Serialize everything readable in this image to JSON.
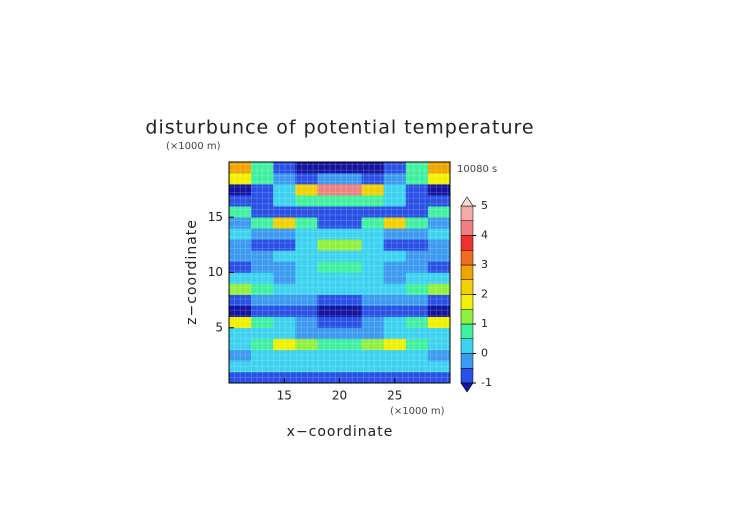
{
  "chart_data": {
    "type": "heatmap",
    "title": "disturbunce of potential temperature",
    "x_label": "x−coordinate",
    "y_label": "z−coordinate",
    "x_unit": "(×1000 m)",
    "y_unit": "(×1000 m)",
    "annotation": "10080 s",
    "xlim": [
      10,
      30
    ],
    "ylim": [
      0,
      20
    ],
    "xticks": [
      15,
      20,
      25
    ],
    "yticks": [
      5,
      10,
      15
    ],
    "x": [
      11,
      13,
      15,
      17,
      19,
      21,
      23,
      25,
      27,
      29
    ],
    "y": [
      0.5,
      1.5,
      2.5,
      3.5,
      4.5,
      5.5,
      6.5,
      7.5,
      8.5,
      9.5,
      10.5,
      11.5,
      12.5,
      13.5,
      14.5,
      15.5,
      16.5,
      17.5,
      18.5,
      19.5
    ],
    "values": [
      [
        -0.6,
        -0.7,
        -0.8,
        -0.7,
        -0.6,
        -0.6,
        -0.7,
        -0.8,
        -0.7,
        -0.6
      ],
      [
        0.3,
        0.4,
        0.3,
        0.2,
        0.2,
        0.2,
        0.2,
        0.3,
        0.4,
        0.3
      ],
      [
        -0.2,
        0.1,
        0.4,
        0.3,
        0.0,
        0.0,
        0.3,
        0.4,
        0.1,
        -0.2
      ],
      [
        0.2,
        0.8,
        1.6,
        1.4,
        0.6,
        0.6,
        1.4,
        1.6,
        0.8,
        0.2
      ],
      [
        0.4,
        0.3,
        0.2,
        -0.2,
        -0.5,
        -0.5,
        -0.2,
        0.2,
        0.3,
        0.4
      ],
      [
        1.5,
        0.6,
        0.3,
        -0.3,
        -0.8,
        -0.8,
        -0.3,
        0.3,
        0.6,
        1.5
      ],
      [
        -1.1,
        -0.9,
        -0.8,
        -0.9,
        -1.1,
        -1.1,
        -0.9,
        -0.8,
        -0.9,
        -1.1
      ],
      [
        -0.6,
        -0.5,
        -0.4,
        -0.5,
        -0.6,
        -0.6,
        -0.5,
        -0.4,
        -0.5,
        -0.6
      ],
      [
        1.0,
        0.6,
        0.2,
        0.0,
        0.1,
        0.1,
        0.0,
        0.2,
        0.6,
        1.0
      ],
      [
        0.1,
        0.0,
        -0.2,
        0.0,
        0.4,
        0.4,
        0.0,
        -0.2,
        0.0,
        0.1
      ],
      [
        -0.8,
        -0.2,
        -0.1,
        0.1,
        0.5,
        0.5,
        0.1,
        -0.1,
        -0.2,
        -0.8
      ],
      [
        -0.2,
        -0.1,
        0.0,
        0.2,
        0.3,
        0.3,
        0.2,
        0.0,
        -0.1,
        -0.2
      ],
      [
        -0.4,
        -0.6,
        -0.8,
        0.3,
        1.0,
        1.0,
        0.3,
        -0.8,
        -0.6,
        -0.4
      ],
      [
        0.0,
        -0.1,
        -0.1,
        0.0,
        0.2,
        0.2,
        0.0,
        -0.1,
        -0.1,
        0.0
      ],
      [
        -0.2,
        0.8,
        2.0,
        0.6,
        -0.6,
        -0.6,
        0.6,
        2.0,
        0.8,
        -0.2
      ],
      [
        0.5,
        -0.6,
        -0.9,
        -0.9,
        -0.9,
        -0.9,
        -0.9,
        -0.9,
        -0.6,
        0.5
      ],
      [
        -0.9,
        -0.6,
        0.0,
        0.6,
        0.8,
        0.8,
        0.6,
        0.0,
        -0.6,
        -0.9
      ],
      [
        -1.1,
        -0.8,
        0.0,
        2.2,
        4.2,
        4.2,
        2.2,
        0.0,
        -0.8,
        -1.1
      ],
      [
        1.8,
        0.6,
        -0.2,
        -0.6,
        -0.4,
        -0.4,
        -0.6,
        -0.2,
        0.6,
        1.8
      ],
      [
        2.6,
        0.8,
        -0.9,
        -1.1,
        -1.2,
        -1.2,
        -1.1,
        -0.9,
        0.8,
        2.6
      ]
    ],
    "levels": [
      -1,
      -0.5,
      0,
      0.5,
      1,
      1.5,
      2,
      2.5,
      3,
      3.5,
      4,
      4.5,
      5
    ],
    "colors": [
      "#2a50e6",
      "#3c9af0",
      "#3cd2f0",
      "#40f0a0",
      "#90f040",
      "#f0f000",
      "#f0d000",
      "#f0a400",
      "#f06a20",
      "#f03030",
      "#f08080",
      "#f4aaaa"
    ],
    "under_color": "#1414a0",
    "over_color": "#f8dada",
    "cbar_ticks": [
      -1,
      0,
      1,
      2,
      3,
      4,
      5
    ]
  }
}
